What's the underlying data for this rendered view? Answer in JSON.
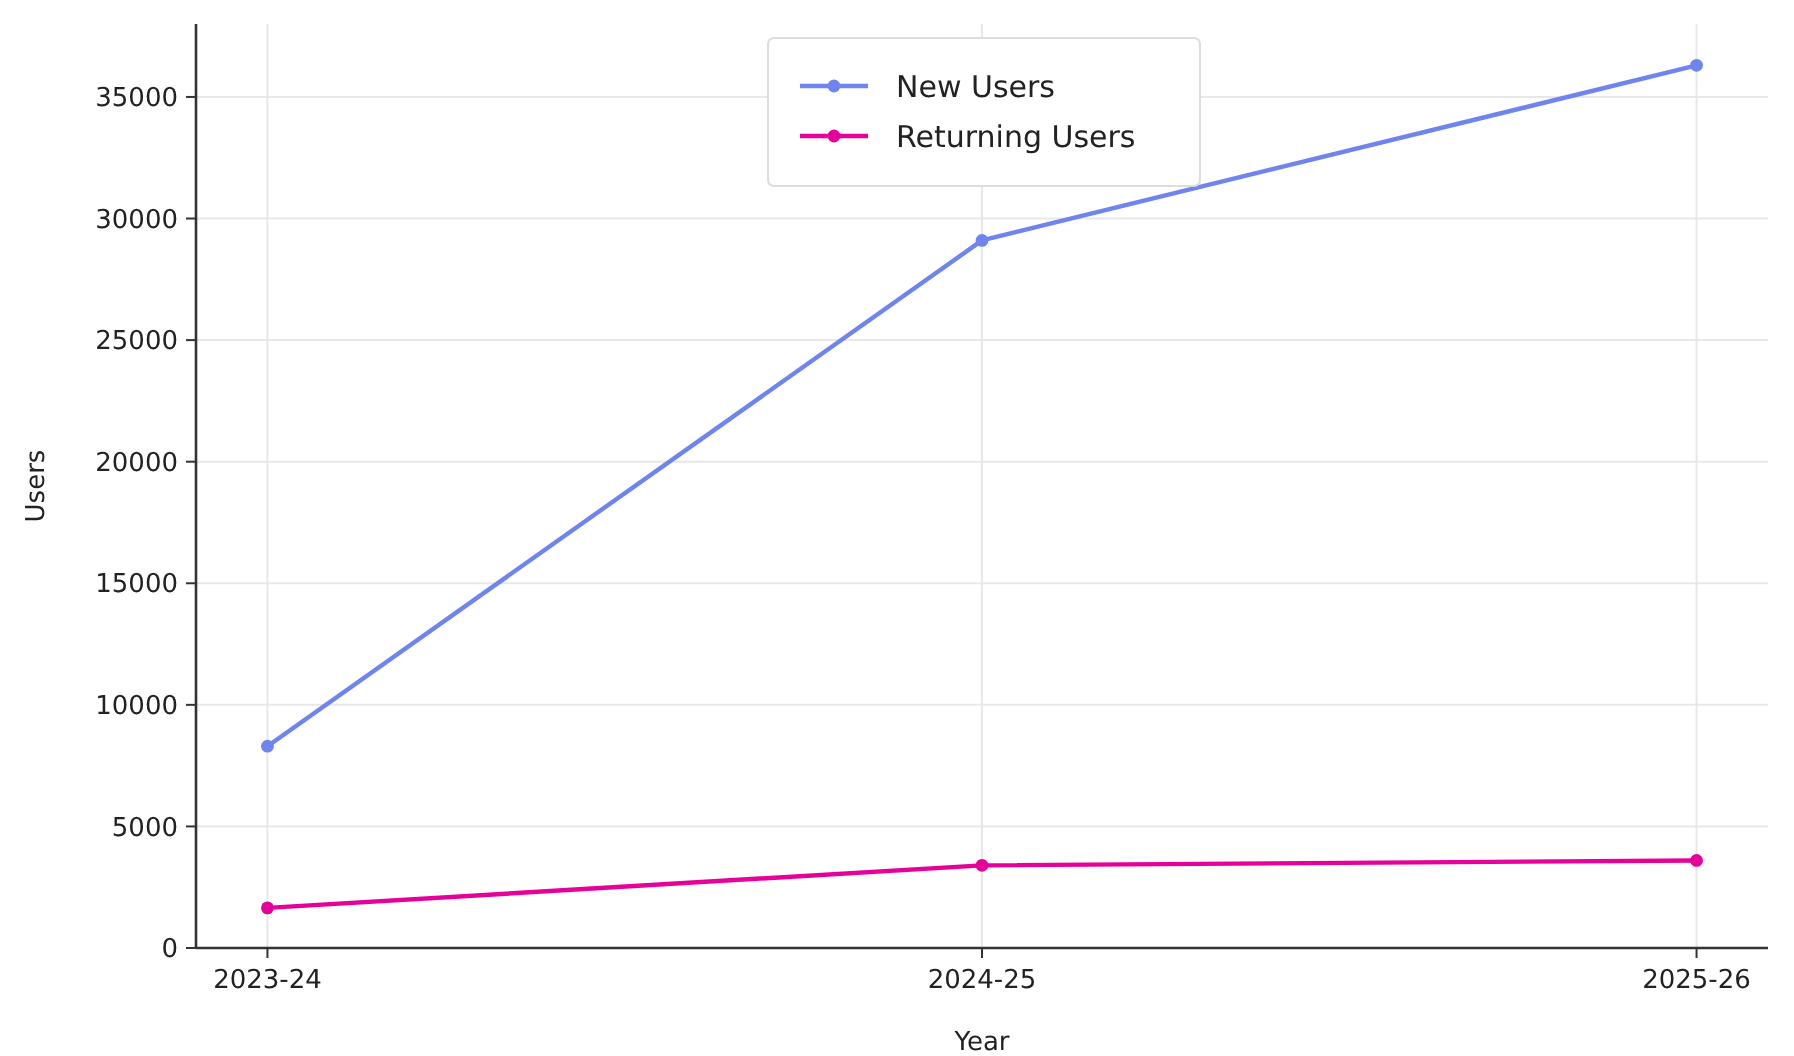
{
  "chart_data": {
    "type": "line",
    "xlabel": "Year",
    "ylabel": "Users",
    "categories": [
      "2023-24",
      "2024-25",
      "2025-26"
    ],
    "series": [
      {
        "name": "New Users",
        "color": "#6e85f0",
        "values": [
          8300,
          29100,
          36300
        ]
      },
      {
        "name": "Returning Users",
        "color": "#e6009a",
        "values": [
          1650,
          3400,
          3600
        ]
      }
    ],
    "ylim": [
      0,
      38000
    ],
    "yticks": [
      0,
      5000,
      10000,
      15000,
      20000,
      25000,
      30000,
      35000
    ],
    "grid": true,
    "legend": "top",
    "marker": "circle",
    "line_style": "solid"
  }
}
